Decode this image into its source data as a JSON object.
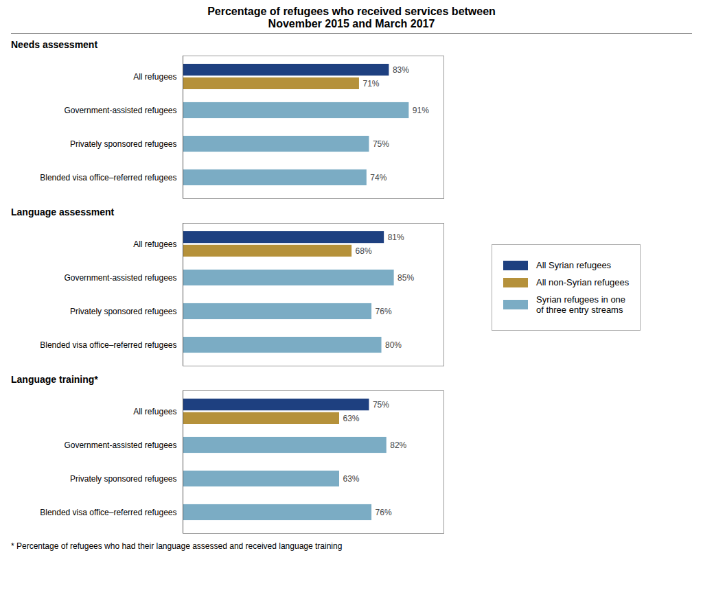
{
  "title": "Percentage of refugees who received services between\nNovember 2015 and March 2017",
  "annotations": [
    "* Percentage of refugees who had their language assessed and received language training"
  ],
  "chart_data": [
    {
      "type": "bar",
      "orientation": "horizontal",
      "title": "Needs assessment",
      "categories": [
        "All refugees",
        "Government-assisted refugees",
        "Privately sponsored refugees",
        "Blended visa office–referred refugees"
      ],
      "series": [
        {
          "name": "All Syrian refugees",
          "color": "#1e4080",
          "values": [
            83,
            null,
            null,
            null
          ],
          "value_labels": [
            "83%",
            null,
            null,
            null
          ]
        },
        {
          "name": "All non-Syrian refugees",
          "color": "#b5913a",
          "values": [
            71,
            null,
            null,
            null
          ],
          "value_labels": [
            "71%",
            null,
            null,
            null
          ]
        },
        {
          "name": "Syrian refugees in one\nof three entry streams",
          "color": "#7bacc4",
          "values": [
            null,
            91,
            75,
            74
          ],
          "value_labels": [
            null,
            "91%",
            "75%",
            "74%"
          ]
        }
      ],
      "xlim": [
        0,
        105
      ],
      "xticks": [],
      "tick_labels": "y",
      "data_labels": true,
      "grid": false,
      "legend": "right"
    },
    {
      "type": "bar",
      "orientation": "horizontal",
      "title": "Language assessment",
      "categories": [
        "All refugees",
        "Government-assisted refugees",
        "Privately sponsored refugees",
        "Blended visa office–referred refugees"
      ],
      "series": [
        {
          "name": "All Syrian refugees",
          "color": "#1e4080",
          "values": [
            81,
            null,
            null,
            null
          ],
          "value_labels": [
            "81%",
            null,
            null,
            null
          ]
        },
        {
          "name": "All non-Syrian refugees",
          "color": "#b5913a",
          "values": [
            68,
            null,
            null,
            null
          ],
          "value_labels": [
            "68%",
            null,
            null,
            null
          ]
        },
        {
          "name": "Syrian refugees in one\nof three entry streams",
          "color": "#7bacc4",
          "values": [
            null,
            85,
            76,
            80
          ],
          "value_labels": [
            null,
            "85%",
            "76%",
            "80%"
          ]
        }
      ],
      "xlim": [
        0,
        105
      ],
      "xticks": [],
      "tick_labels": "y",
      "data_labels": true,
      "grid": false,
      "legend": "right"
    },
    {
      "type": "bar",
      "orientation": "horizontal",
      "title": "Language training*",
      "categories": [
        "All refugees",
        "Government-assisted refugees",
        "Privately sponsored refugees",
        "Blended visa office–referred refugees"
      ],
      "series": [
        {
          "name": "All Syrian refugees",
          "color": "#1e4080",
          "values": [
            75,
            null,
            null,
            null
          ],
          "value_labels": [
            "75%",
            null,
            null,
            null
          ]
        },
        {
          "name": "All non-Syrian refugees",
          "color": "#b5913a",
          "values": [
            63,
            null,
            null,
            null
          ],
          "value_labels": [
            "63%",
            null,
            null,
            null
          ]
        },
        {
          "name": "Syrian refugees in one\nof three entry streams",
          "color": "#7bacc4",
          "values": [
            null,
            82,
            63,
            76
          ],
          "value_labels": [
            null,
            "82%",
            "63%",
            "76%"
          ]
        }
      ],
      "xlim": [
        0,
        105
      ],
      "xticks": [],
      "tick_labels": "y",
      "data_labels": true,
      "grid": false,
      "legend": "right"
    }
  ]
}
